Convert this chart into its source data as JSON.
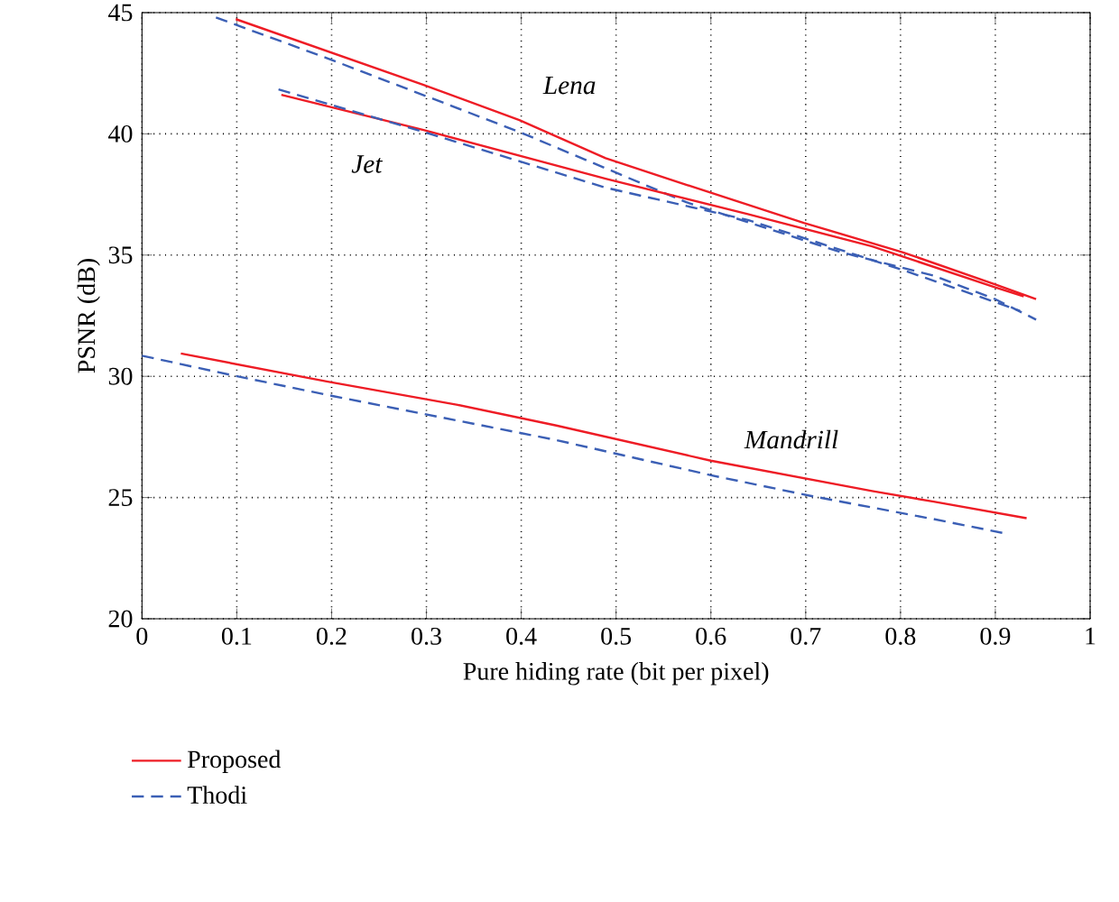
{
  "chart_data": {
    "type": "line",
    "xlabel": "Pure hiding rate (bit per pixel)",
    "ylabel": "PSNR (dB)",
    "xlim": [
      0,
      1
    ],
    "ylim": [
      20,
      45
    ],
    "xticks": [
      0,
      0.1,
      0.2,
      0.3,
      0.4,
      0.5,
      0.6,
      0.7,
      0.8,
      0.9,
      1
    ],
    "yticks": [
      20,
      25,
      30,
      35,
      40,
      45
    ],
    "grid": true,
    "legend": "bottom left",
    "marker": "none",
    "series": [
      {
        "name": "Proposed",
        "color": "#ee1c25",
        "line_style": "solid",
        "x": [
          0.099,
          0.297,
          0.398,
          0.489,
          0.574,
          0.698,
          0.802,
          0.9,
          0.943
        ],
        "values": [
          44.73,
          42.02,
          40.57,
          39.0,
          37.9,
          36.33,
          35.12,
          33.79,
          33.18
        ]
      },
      {
        "name": "Thodi",
        "color": "#3b5fb5",
        "line_style": "dashed",
        "x": [
          0.078,
          0.196,
          0.398,
          0.574,
          0.737,
          0.835,
          0.9,
          0.943
        ],
        "values": [
          44.8,
          43.11,
          40.08,
          37.18,
          35.12,
          34.15,
          33.18,
          32.34
        ]
      },
      {
        "color": "#ee1c25",
        "line_style": "solid",
        "x": [
          0.147,
          0.297,
          0.489,
          0.639,
          0.77,
          0.9,
          0.93
        ],
        "values": [
          41.61,
          40.16,
          38.15,
          36.69,
          35.36,
          33.67,
          33.3
        ]
      },
      {
        "color": "#3b5fb5",
        "line_style": "dashed",
        "x": [
          0.144,
          0.297,
          0.489,
          0.639,
          0.802,
          0.9,
          0.926
        ],
        "values": [
          41.83,
          40.08,
          37.78,
          36.45,
          34.39,
          33.06,
          32.7
        ]
      },
      {
        "color": "#ee1c25",
        "line_style": "solid",
        "x": [
          0.041,
          0.196,
          0.333,
          0.437,
          0.6,
          0.77,
          0.835,
          0.933
        ],
        "values": [
          30.94,
          29.78,
          28.82,
          27.97,
          26.52,
          25.27,
          24.83,
          24.15
        ]
      },
      {
        "color": "#3b5fb5",
        "line_style": "dashed",
        "x": [
          0.0,
          0.098,
          0.202,
          0.437,
          0.6,
          0.705,
          0.835,
          0.913
        ],
        "values": [
          30.85,
          30.02,
          29.18,
          27.37,
          25.92,
          25.07,
          24.11,
          23.5
        ]
      }
    ],
    "annotations": [
      "Lena",
      "Jet",
      "Mandrill"
    ]
  }
}
